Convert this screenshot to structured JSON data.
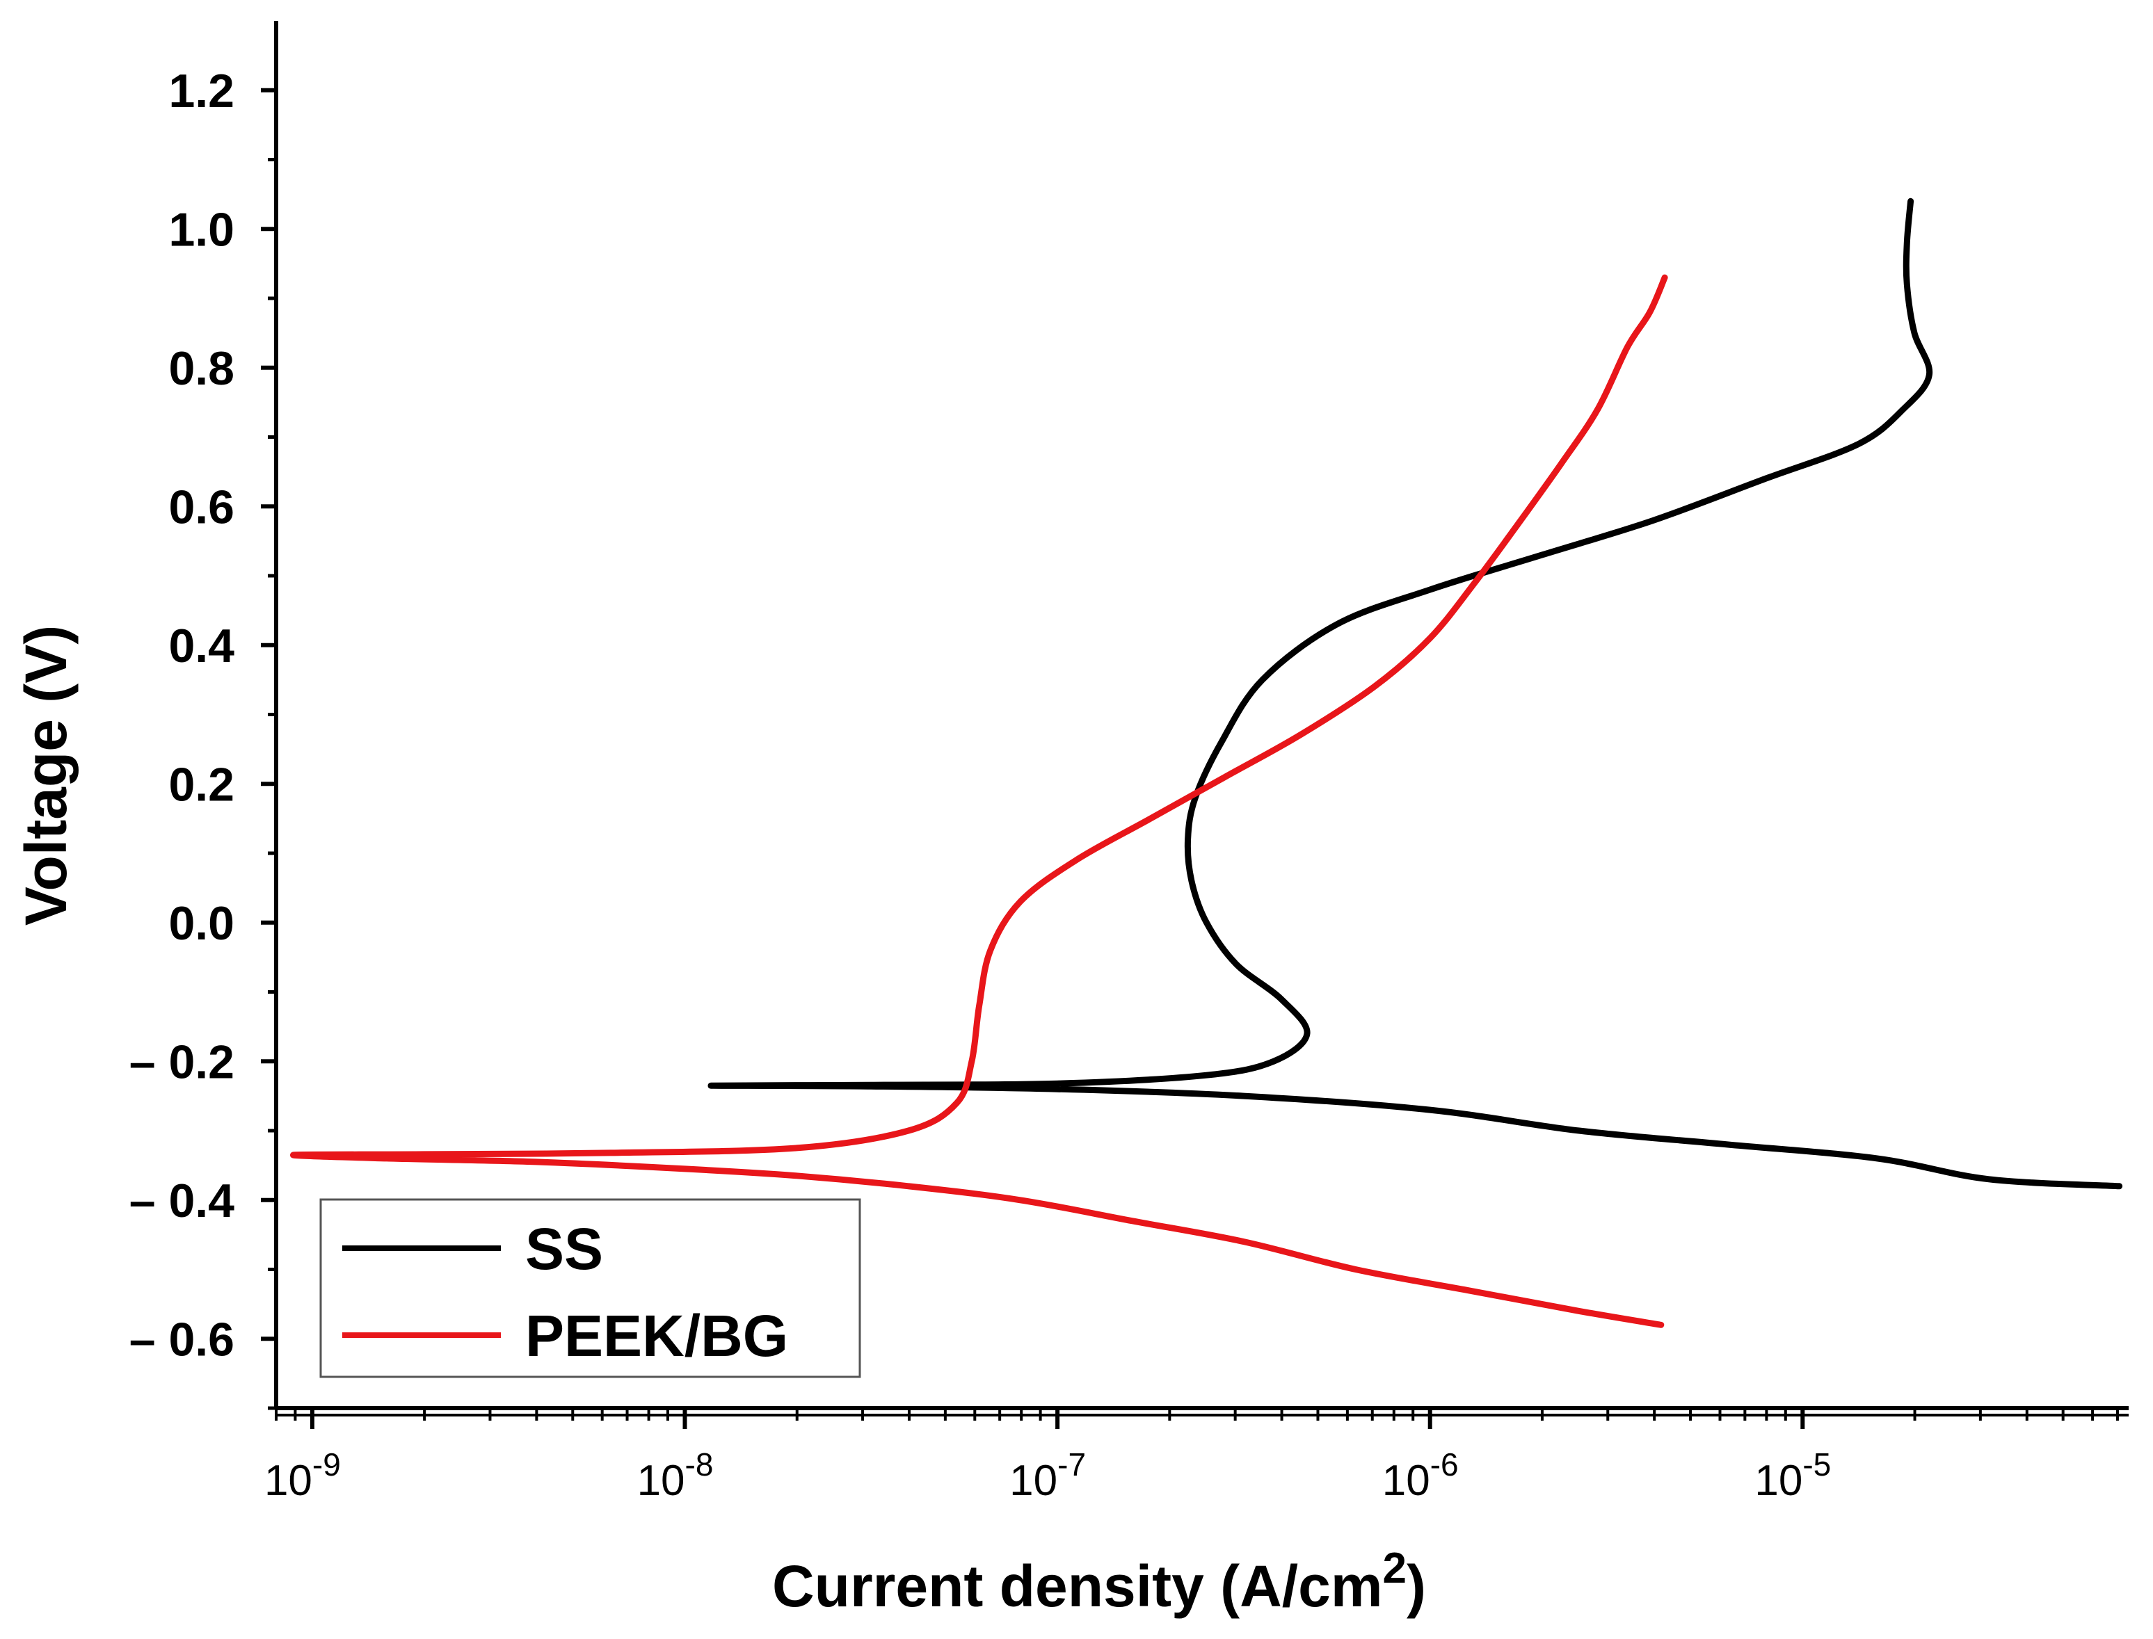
{
  "chart_data": {
    "type": "line",
    "title": "",
    "xlabel": "Current density (A/cm",
    "xlabel_superscript": "2",
    "xlabel_close": ")",
    "ylabel": "Voltage (V)",
    "xscale": "log",
    "xlim": [
      8e-10,
      7.5e-05
    ],
    "ylim": [
      -0.7,
      1.3
    ],
    "yticks": [
      {
        "value": -0.6,
        "label": "– 0.6"
      },
      {
        "value": -0.4,
        "label": "– 0.4"
      },
      {
        "value": -0.2,
        "label": "– 0.2"
      },
      {
        "value": 0.0,
        "label": "0.0"
      },
      {
        "value": 0.2,
        "label": "0.2"
      },
      {
        "value": 0.4,
        "label": "0.4"
      },
      {
        "value": 0.6,
        "label": "0.6"
      },
      {
        "value": 0.8,
        "label": "0.8"
      },
      {
        "value": 1.0,
        "label": "1.0"
      },
      {
        "value": 1.2,
        "label": "1.2"
      }
    ],
    "xticks": [
      {
        "exp": -9,
        "base": "10",
        "sup": "-9"
      },
      {
        "exp": -8,
        "base": "10",
        "sup": "-8"
      },
      {
        "exp": -7,
        "base": "10",
        "sup": "-7"
      },
      {
        "exp": -6,
        "base": "10",
        "sup": "-6"
      },
      {
        "exp": -5,
        "base": "10",
        "sup": "-5"
      }
    ],
    "legend": {
      "position": "bottom-left"
    },
    "series": [
      {
        "name": "SS",
        "color": "#000000",
        "points": [
          [
            -4.15,
            -0.38
          ],
          [
            -4.5,
            -0.37
          ],
          [
            -4.8,
            -0.34
          ],
          [
            -5.2,
            -0.32
          ],
          [
            -5.6,
            -0.3
          ],
          [
            -6.0,
            -0.27
          ],
          [
            -6.5,
            -0.25
          ],
          [
            -7.0,
            -0.24
          ],
          [
            -7.5,
            -0.236
          ],
          [
            -7.93,
            -0.235
          ],
          [
            -7.5,
            -0.234
          ],
          [
            -7.0,
            -0.232
          ],
          [
            -6.6,
            -0.22
          ],
          [
            -6.42,
            -0.2
          ],
          [
            -6.33,
            -0.16
          ],
          [
            -6.4,
            -0.11
          ],
          [
            -6.52,
            -0.06
          ],
          [
            -6.6,
            0.0
          ],
          [
            -6.64,
            0.06
          ],
          [
            -6.65,
            0.12
          ],
          [
            -6.63,
            0.18
          ],
          [
            -6.56,
            0.26
          ],
          [
            -6.45,
            0.35
          ],
          [
            -6.25,
            0.43
          ],
          [
            -6.0,
            0.48
          ],
          [
            -5.7,
            0.53
          ],
          [
            -5.4,
            0.58
          ],
          [
            -5.1,
            0.64
          ],
          [
            -4.85,
            0.69
          ],
          [
            -4.73,
            0.74
          ],
          [
            -4.66,
            0.79
          ],
          [
            -4.7,
            0.85
          ],
          [
            -4.72,
            0.92
          ],
          [
            -4.72,
            0.98
          ],
          [
            -4.71,
            1.04
          ]
        ]
      },
      {
        "name": "PEEK/BG",
        "color": "#e8161a",
        "points": [
          [
            -5.38,
            -0.58
          ],
          [
            -5.6,
            -0.56
          ],
          [
            -5.9,
            -0.53
          ],
          [
            -6.2,
            -0.5
          ],
          [
            -6.5,
            -0.46
          ],
          [
            -6.8,
            -0.43
          ],
          [
            -7.1,
            -0.4
          ],
          [
            -7.4,
            -0.38
          ],
          [
            -7.7,
            -0.365
          ],
          [
            -8.0,
            -0.355
          ],
          [
            -8.4,
            -0.345
          ],
          [
            -8.8,
            -0.34
          ],
          [
            -9.05,
            -0.335
          ],
          [
            -8.7,
            -0.334
          ],
          [
            -8.2,
            -0.332
          ],
          [
            -7.7,
            -0.325
          ],
          [
            -7.4,
            -0.3
          ],
          [
            -7.27,
            -0.26
          ],
          [
            -7.23,
            -0.2
          ],
          [
            -7.21,
            -0.12
          ],
          [
            -7.18,
            -0.04
          ],
          [
            -7.1,
            0.03
          ],
          [
            -6.95,
            0.09
          ],
          [
            -6.75,
            0.15
          ],
          [
            -6.55,
            0.21
          ],
          [
            -6.35,
            0.27
          ],
          [
            -6.15,
            0.34
          ],
          [
            -6.0,
            0.41
          ],
          [
            -5.88,
            0.49
          ],
          [
            -5.77,
            0.57
          ],
          [
            -5.65,
            0.66
          ],
          [
            -5.55,
            0.74
          ],
          [
            -5.47,
            0.83
          ],
          [
            -5.41,
            0.88
          ],
          [
            -5.37,
            0.93
          ]
        ]
      }
    ]
  }
}
